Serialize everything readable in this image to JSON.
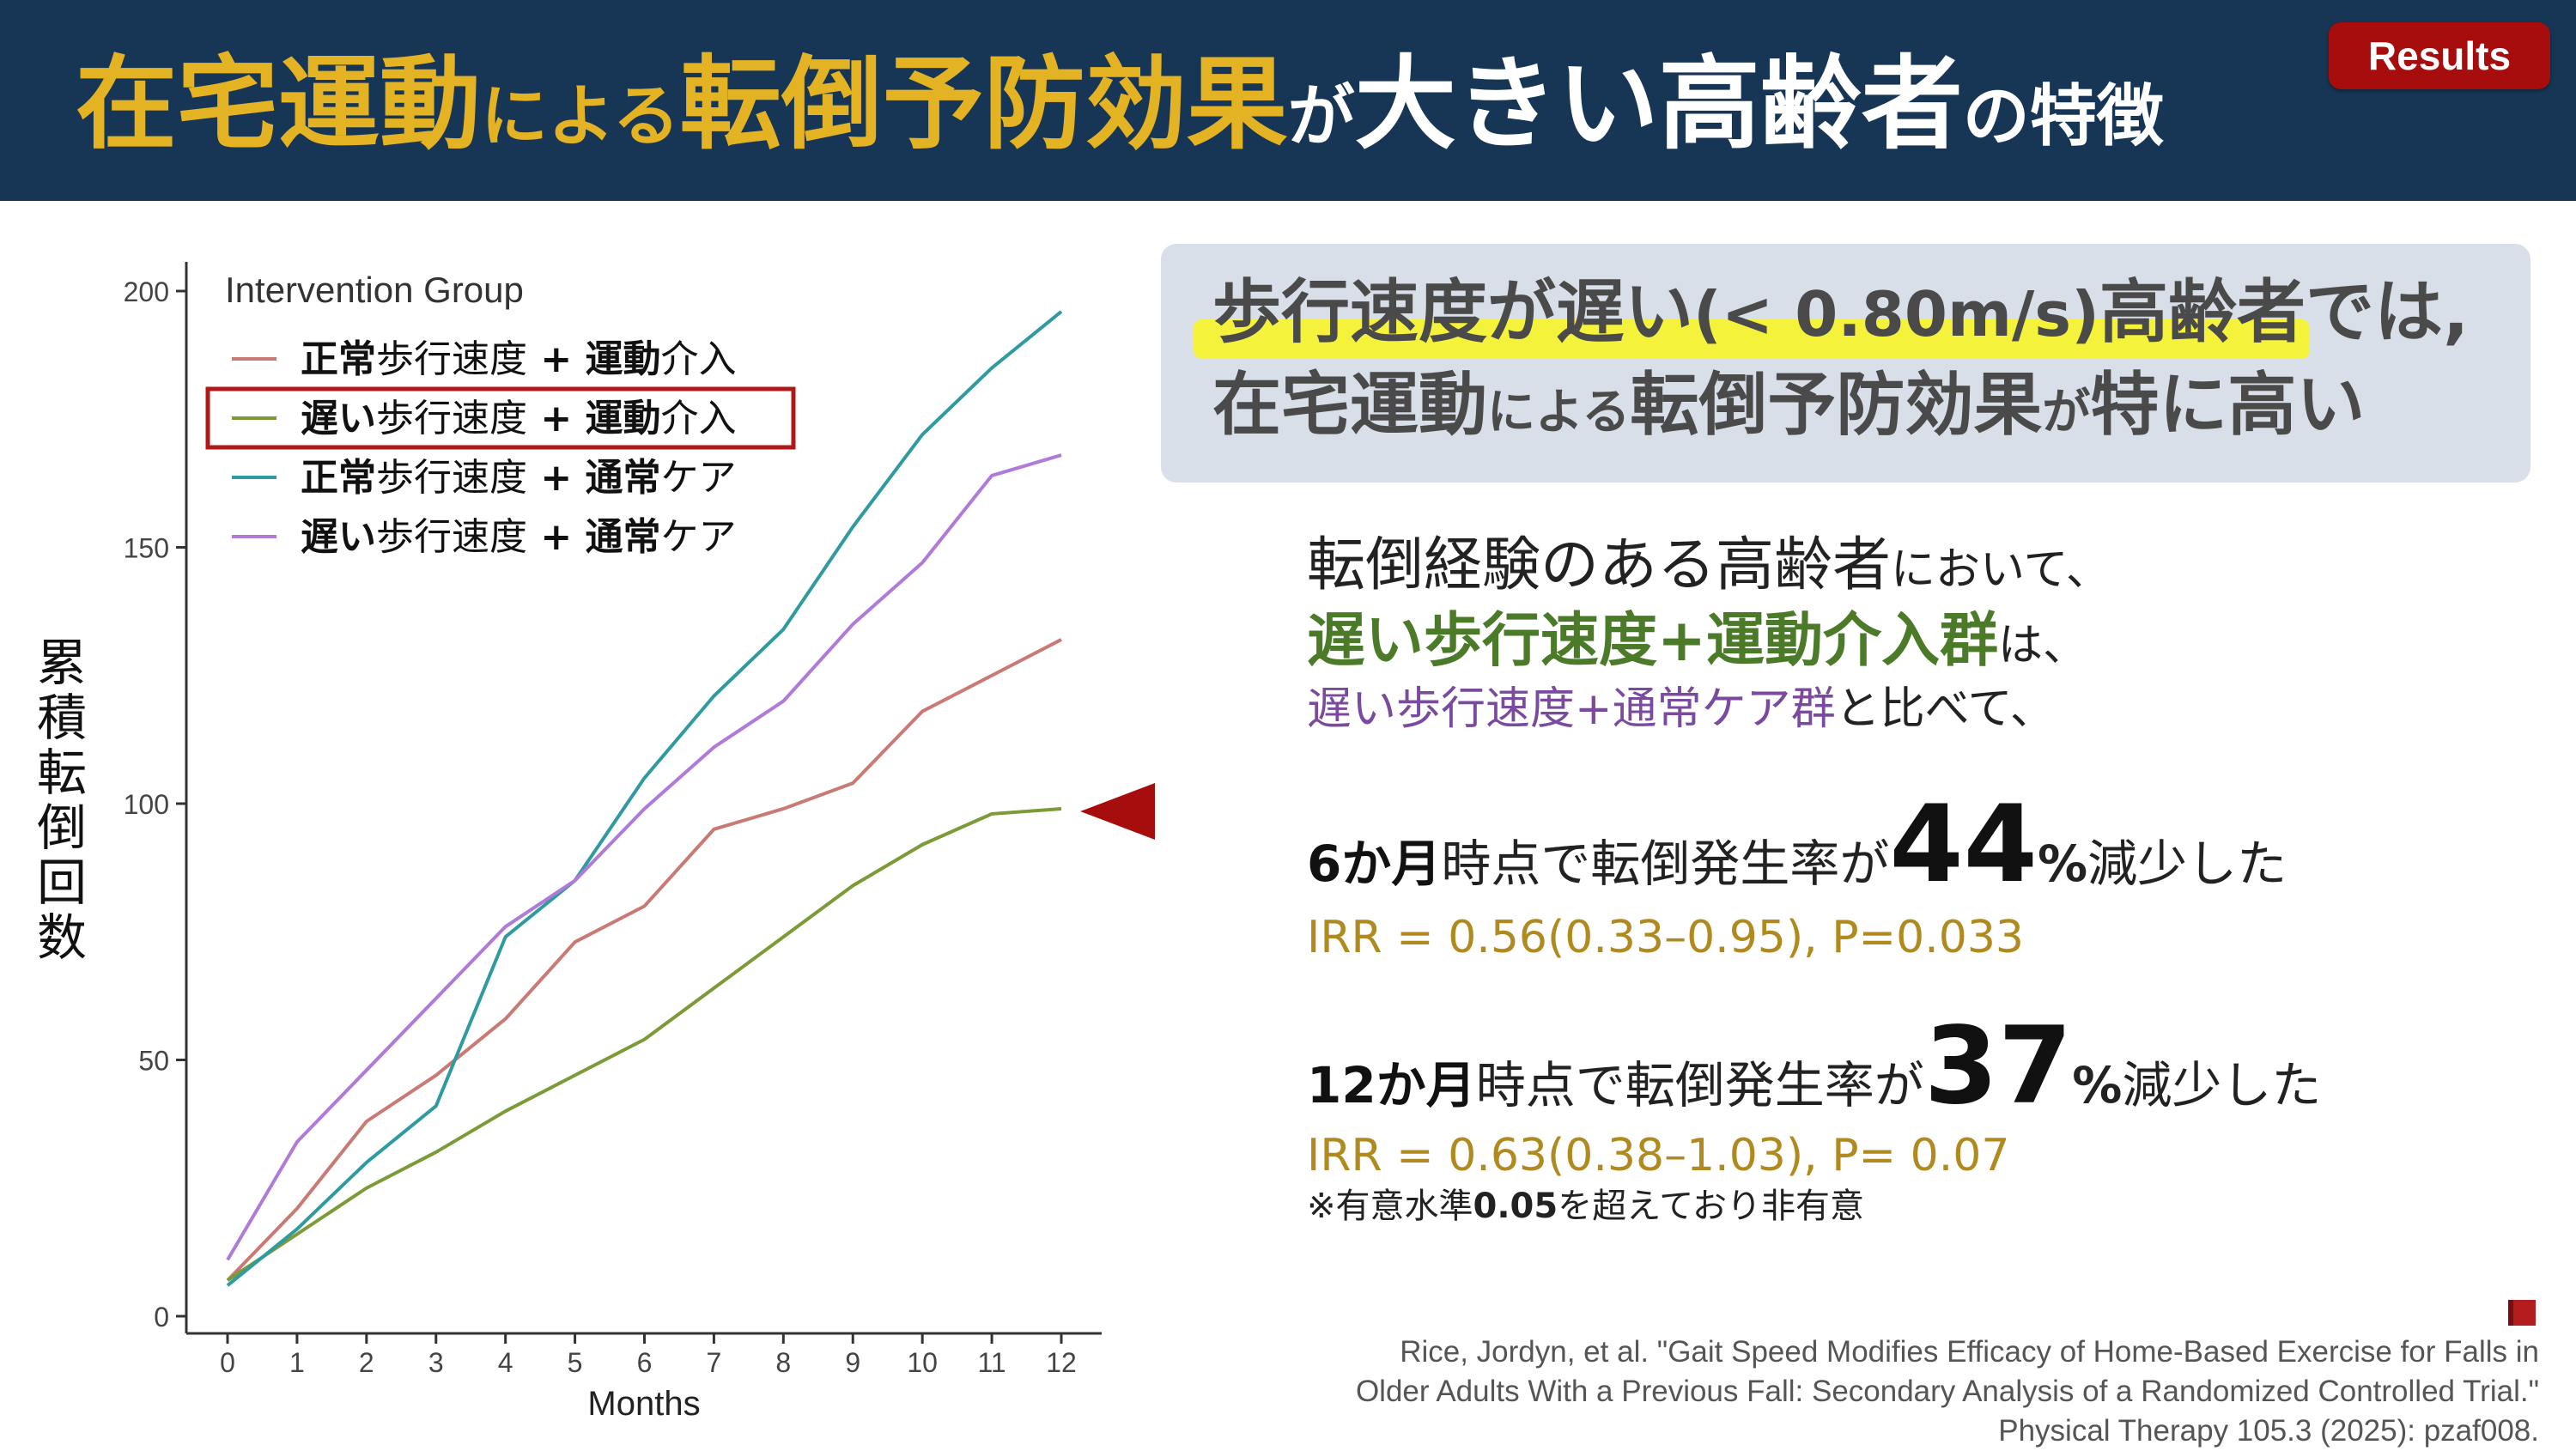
{
  "header": {
    "title_parts": [
      "在宅運動",
      "による",
      "転倒予防効果",
      "が",
      "大きい高齢者",
      "の特徴"
    ],
    "badge": "Results"
  },
  "colors": {
    "header_bg": "#173656",
    "title_gold": "#e4b324",
    "badge_bg": "#a70d0d",
    "series_normal_exercise": "#c97a74",
    "series_slow_exercise": "#7c9a36",
    "series_normal_usual": "#2f9aa0",
    "series_slow_usual": "#b07ad8",
    "highlight_box": "#b01818",
    "arrow": "#a60d0d"
  },
  "chart_data": {
    "type": "line",
    "x": [
      0,
      1,
      2,
      3,
      4,
      5,
      6,
      7,
      8,
      9,
      10,
      11,
      12
    ],
    "xlabel": "Months",
    "ylabel": "累積転倒回数",
    "xlim": [
      0,
      12
    ],
    "ylim": [
      0,
      200
    ],
    "y_ticks": [
      0,
      50,
      100,
      150,
      200
    ],
    "grid": false,
    "legend_title": "Intervention Group",
    "legend_position": "top-left",
    "series": [
      {
        "name_a": "正常",
        "name_b": "歩行速度",
        "name_c": " + ",
        "name_d": "運動",
        "name_e": "介入",
        "color": "#c97a74",
        "values": [
          7,
          21,
          38,
          47,
          58,
          73,
          80,
          95,
          99,
          104,
          118,
          125,
          132
        ]
      },
      {
        "name_a": "遅い",
        "name_b": "歩行速度",
        "name_c": " + ",
        "name_d": "運動",
        "name_e": "介入",
        "color": "#7c9a36",
        "highlighted": true,
        "values": [
          7,
          16,
          25,
          32,
          40,
          47,
          54,
          64,
          74,
          84,
          92,
          98,
          99
        ]
      },
      {
        "name_a": "正常",
        "name_b": "歩行速度",
        "name_c": " + ",
        "name_d": "通常",
        "name_e": "ケア",
        "color": "#2f9aa0",
        "values": [
          6,
          17,
          30,
          41,
          74,
          85,
          105,
          121,
          134,
          154,
          172,
          185,
          196
        ]
      },
      {
        "name_a": "遅い",
        "name_b": "歩行速度",
        "name_c": " + ",
        "name_d": "通常",
        "name_e": "ケア",
        "color": "#b07ad8",
        "values": [
          11,
          34,
          48,
          62,
          76,
          85,
          99,
          111,
          120,
          135,
          147,
          164,
          168
        ]
      }
    ]
  },
  "y_axis_title_chars": [
    "累",
    "積",
    "転",
    "倒",
    "回",
    "数"
  ],
  "callout": {
    "line1_a": "歩行速度が遅い",
    "line1_b": "(< 0.80m/s)",
    "line1_c": "高齢者では,",
    "line2_a": "在宅運動",
    "line2_b": "による",
    "line2_c": "転倒予防効果",
    "line2_d": "が",
    "line2_e": "特に高い"
  },
  "body": {
    "line_a_main": "転倒経験のある高齢者",
    "line_a_sub": "において、",
    "line_b_main": "遅い歩行速度+運動介入群",
    "line_b_sub": "は、",
    "line_c_main": "遅い歩行速度+通常ケア群",
    "line_c_sub": "と比べて、",
    "stat6_period": "6か月",
    "stat6_text": "時点で転倒発生率が",
    "stat6_value": "44",
    "stat6_pct": "%",
    "stat6_suffix": "減少した",
    "irr6": "IRR = 0.56(0.33–0.95), P=0.033",
    "stat12_period": "12か月",
    "stat12_text": "時点で転倒発生率が",
    "stat12_value": "37",
    "stat12_pct": "%",
    "stat12_suffix": "減少した",
    "irr12": "IRR = 0.63(0.38–1.03), P= 0.07",
    "note_a": "※有意水準",
    "note_b": "0.05",
    "note_c": "を超えており非有意"
  },
  "citation": {
    "line1": "Rice, Jordyn, et al. \"Gait Speed Modifies Efficacy of Home-Based Exercise for Falls in",
    "line2": "Older Adults With a Previous Fall: Secondary Analysis of a Randomized Controlled Trial.\"",
    "line3": "Physical Therapy 105.3 (2025): pzaf008.",
    "icon": "book-icon"
  }
}
